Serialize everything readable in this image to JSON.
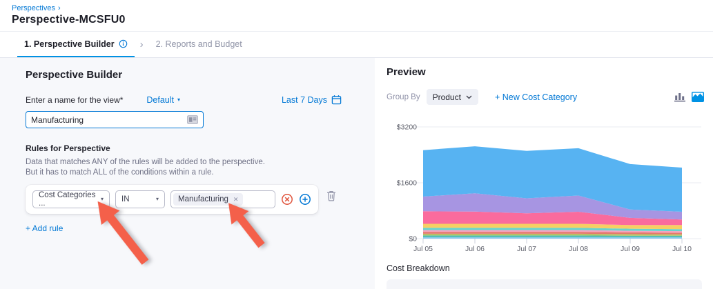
{
  "icons": {
    "caret_down": "▾",
    "chevron_right": "›",
    "close": "✕"
  },
  "colors": {
    "primary_blue": "#0278d5",
    "tab_underline": "#0092e4",
    "annotation_arrow": "#f4604a",
    "danger": "#e0543c",
    "left_panel_bg": "#f7f8fb"
  },
  "breadcrumb": {
    "parent": "Perspectives",
    "title": "Perspective-MCSFU0"
  },
  "tabs": {
    "items": [
      {
        "label": "1. Perspective Builder"
      },
      {
        "label": "2. Reports and Budget"
      }
    ]
  },
  "builder": {
    "heading": "Perspective Builder",
    "name_label": "Enter a name for the view*",
    "folder_dropdown": {
      "label": "Default"
    },
    "date_range": {
      "label": "Last 7 Days"
    },
    "name_input": {
      "value": "Manufacturing"
    },
    "rules": {
      "heading": "Rules for Perspective",
      "description_line1": "Data that matches ANY of the rules will be added to the perspective.",
      "description_line2": "But it has to match ALL of the conditions within a rule.",
      "rule": {
        "field": "Cost Categories ...",
        "operator": "IN",
        "chips": [
          {
            "label": "Manufacturing"
          }
        ]
      },
      "add_rule_label": "+ Add rule"
    }
  },
  "preview": {
    "heading": "Preview",
    "group_by": {
      "label": "Group By",
      "value": "Product"
    },
    "new_cost_category_label": "+ New Cost Category",
    "cost_breakdown_heading": "Cost Breakdown"
  },
  "chart_data": {
    "type": "area",
    "stacked": true,
    "title": "",
    "xlabel": "",
    "ylabel": "",
    "grid": true,
    "legend": false,
    "ylim": [
      0,
      3200
    ],
    "yticks": [
      {
        "label": "$0",
        "value": 0
      },
      {
        "label": "$1600",
        "value": 1600
      },
      {
        "label": "$3200",
        "value": 3200
      }
    ],
    "categories": [
      "Jul 05",
      "Jul 06",
      "Jul 07",
      "Jul 08",
      "Jul 09",
      "Jul 10"
    ],
    "series": [
      {
        "name": "light-blue",
        "color": "#8ec9ee",
        "values": [
          40,
          40,
          40,
          40,
          40,
          40
        ]
      },
      {
        "name": "teal",
        "color": "#52c1b2",
        "values": [
          50,
          50,
          50,
          50,
          45,
          45
        ]
      },
      {
        "name": "olive",
        "color": "#b9bf62",
        "values": [
          50,
          50,
          50,
          50,
          45,
          40
        ]
      },
      {
        "name": "salmon",
        "color": "#e4796d",
        "values": [
          55,
          55,
          55,
          55,
          50,
          45
        ]
      },
      {
        "name": "light-pink",
        "color": "#f5a3c0",
        "values": [
          50,
          50,
          50,
          50,
          45,
          45
        ]
      },
      {
        "name": "cyan",
        "color": "#68d3cd",
        "values": [
          65,
          65,
          65,
          65,
          60,
          55
        ]
      },
      {
        "name": "yellow",
        "color": "#f6cf63",
        "values": [
          115,
          115,
          115,
          115,
          105,
          120
        ]
      },
      {
        "name": "pink",
        "color": "#fa6b9d",
        "values": [
          360,
          350,
          300,
          345,
          205,
          160
        ]
      },
      {
        "name": "purple",
        "color": "#a795e2",
        "values": [
          420,
          525,
          430,
          465,
          240,
          220
        ]
      },
      {
        "name": "blue",
        "color": "#57b3f2",
        "values": [
          1330,
          1345,
          1360,
          1355,
          1300,
          1265
        ]
      }
    ]
  }
}
